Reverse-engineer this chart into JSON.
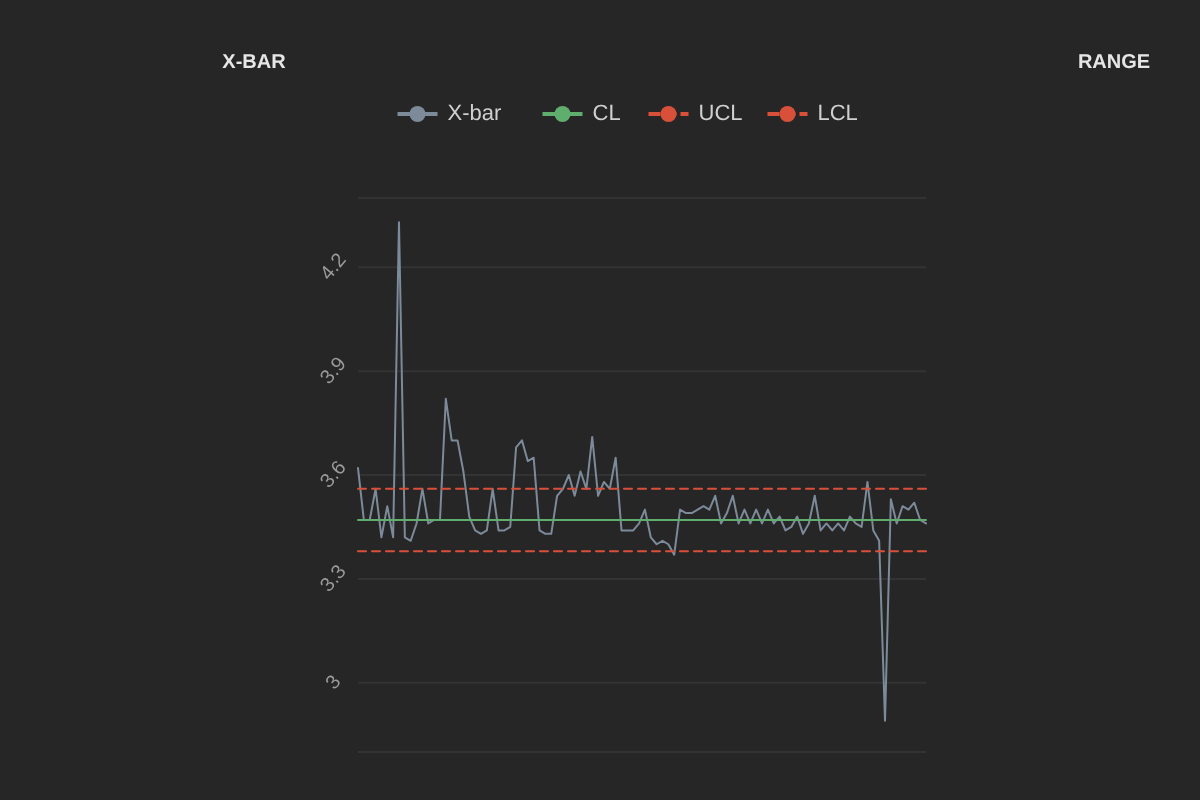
{
  "chart_data": [
    {
      "type": "line",
      "title": "X-BAR",
      "legend": "top",
      "grid": "y",
      "tick_labels": "y",
      "ylim": [
        2.8,
        4.4
      ],
      "yticks": [
        3,
        3.3,
        3.6,
        3.9,
        4.2
      ],
      "categories": [
        null,
        null,
        null,
        null,
        null,
        null,
        null,
        null,
        null,
        null,
        null,
        null,
        null,
        null,
        null,
        null,
        null,
        null,
        null,
        null,
        null,
        null,
        null,
        null,
        null,
        null,
        null,
        null,
        null,
        null,
        null,
        null,
        null,
        null,
        null,
        null,
        null,
        null,
        null,
        null,
        null,
        null,
        null,
        null,
        null,
        null,
        null,
        null,
        null,
        null,
        null,
        null,
        null,
        null,
        null,
        null,
        null,
        null,
        null,
        null,
        null,
        null,
        null,
        null,
        null,
        null,
        null,
        null,
        null,
        null,
        null,
        null,
        null,
        null,
        null,
        null,
        null,
        null,
        null,
        null,
        null,
        null,
        null,
        null,
        null,
        null,
        null,
        null,
        null,
        null,
        null,
        null,
        null,
        null,
        null,
        null,
        null,
        null
      ],
      "series": [
        {
          "name": "X-bar",
          "color": "#7c8a99",
          "line_style": "solid",
          "values": [
            3.62,
            3.47,
            3.47,
            3.56,
            3.42,
            3.51,
            3.42,
            4.33,
            3.42,
            3.41,
            3.46,
            3.56,
            3.46,
            3.47,
            3.47,
            3.82,
            3.7,
            3.7,
            3.61,
            3.48,
            3.44,
            3.43,
            3.44,
            3.56,
            3.44,
            3.44,
            3.45,
            3.68,
            3.7,
            3.64,
            3.65,
            3.44,
            3.43,
            3.43,
            3.54,
            3.56,
            3.6,
            3.54,
            3.61,
            3.56,
            3.71,
            3.54,
            3.58,
            3.56,
            3.65,
            3.44,
            3.44,
            3.44,
            3.46,
            3.5,
            3.42,
            3.4,
            3.41,
            3.4,
            3.37,
            3.5,
            3.49,
            3.49,
            3.5,
            3.51,
            3.5,
            3.54,
            3.46,
            3.49,
            3.54,
            3.46,
            3.5,
            3.46,
            3.5,
            3.46,
            3.5,
            3.46,
            3.48,
            3.44,
            3.45,
            3.48,
            3.43,
            3.46,
            3.54,
            3.44,
            3.46,
            3.44,
            3.46,
            3.44,
            3.48,
            3.46,
            3.45,
            3.58,
            3.44,
            3.41,
            2.89,
            3.53,
            3.46,
            3.51,
            3.5,
            3.52,
            3.47,
            3.46
          ]
        },
        {
          "name": "CL",
          "color": "#5fae6e",
          "line_style": "solid",
          "values": [
            3.47,
            3.47,
            3.47,
            3.47,
            3.47,
            3.47,
            3.47,
            3.47,
            3.47,
            3.47,
            3.47,
            3.47,
            3.47,
            3.47,
            3.47,
            3.47,
            3.47,
            3.47,
            3.47,
            3.47,
            3.47,
            3.47,
            3.47,
            3.47,
            3.47,
            3.47,
            3.47,
            3.47,
            3.47,
            3.47,
            3.47,
            3.47,
            3.47,
            3.47,
            3.47,
            3.47,
            3.47,
            3.47,
            3.47,
            3.47,
            3.47,
            3.47,
            3.47,
            3.47,
            3.47,
            3.47,
            3.47,
            3.47,
            3.47,
            3.47,
            3.47,
            3.47,
            3.47,
            3.47,
            3.47,
            3.47,
            3.47,
            3.47,
            3.47,
            3.47,
            3.47,
            3.47,
            3.47,
            3.47,
            3.47,
            3.47,
            3.47,
            3.47,
            3.47,
            3.47,
            3.47,
            3.47,
            3.47,
            3.47,
            3.47,
            3.47,
            3.47,
            3.47,
            3.47,
            3.47,
            3.47,
            3.47,
            3.47,
            3.47,
            3.47,
            3.47,
            3.47,
            3.47,
            3.47,
            3.47,
            3.47,
            3.47,
            3.47,
            3.47,
            3.47,
            3.47,
            3.47,
            3.47
          ]
        },
        {
          "name": "UCL",
          "color": "#d9503a",
          "line_style": "dashed",
          "values": [
            3.56,
            3.56,
            3.56,
            3.56,
            3.56,
            3.56,
            3.56,
            3.56,
            3.56,
            3.56,
            3.56,
            3.56,
            3.56,
            3.56,
            3.56,
            3.56,
            3.56,
            3.56,
            3.56,
            3.56,
            3.56,
            3.56,
            3.56,
            3.56,
            3.56,
            3.56,
            3.56,
            3.56,
            3.56,
            3.56,
            3.56,
            3.56,
            3.56,
            3.56,
            3.56,
            3.56,
            3.56,
            3.56,
            3.56,
            3.56,
            3.56,
            3.56,
            3.56,
            3.56,
            3.56,
            3.56,
            3.56,
            3.56,
            3.56,
            3.56,
            3.56,
            3.56,
            3.56,
            3.56,
            3.56,
            3.56,
            3.56,
            3.56,
            3.56,
            3.56,
            3.56,
            3.56,
            3.56,
            3.56,
            3.56,
            3.56,
            3.56,
            3.56,
            3.56,
            3.56,
            3.56,
            3.56,
            3.56,
            3.56,
            3.56,
            3.56,
            3.56,
            3.56,
            3.56,
            3.56,
            3.56,
            3.56,
            3.56,
            3.56,
            3.56,
            3.56,
            3.56,
            3.56,
            3.56,
            3.56,
            3.56,
            3.56,
            3.56,
            3.56,
            3.56,
            3.56,
            3.56,
            3.56
          ]
        },
        {
          "name": "LCL",
          "color": "#d9503a",
          "line_style": "dashed",
          "values": [
            3.38,
            3.38,
            3.38,
            3.38,
            3.38,
            3.38,
            3.38,
            3.38,
            3.38,
            3.38,
            3.38,
            3.38,
            3.38,
            3.38,
            3.38,
            3.38,
            3.38,
            3.38,
            3.38,
            3.38,
            3.38,
            3.38,
            3.38,
            3.38,
            3.38,
            3.38,
            3.38,
            3.38,
            3.38,
            3.38,
            3.38,
            3.38,
            3.38,
            3.38,
            3.38,
            3.38,
            3.38,
            3.38,
            3.38,
            3.38,
            3.38,
            3.38,
            3.38,
            3.38,
            3.38,
            3.38,
            3.38,
            3.38,
            3.38,
            3.38,
            3.38,
            3.38,
            3.38,
            3.38,
            3.38,
            3.38,
            3.38,
            3.38,
            3.38,
            3.38,
            3.38,
            3.38,
            3.38,
            3.38,
            3.38,
            3.38,
            3.38,
            3.38,
            3.38,
            3.38,
            3.38,
            3.38,
            3.38,
            3.38,
            3.38,
            3.38,
            3.38,
            3.38,
            3.38,
            3.38,
            3.38,
            3.38,
            3.38,
            3.38,
            3.38,
            3.38,
            3.38,
            3.38,
            3.38,
            3.38,
            3.38,
            3.38,
            3.38,
            3.38,
            3.38,
            3.38,
            3.38,
            3.38
          ]
        }
      ]
    },
    {
      "type": "other",
      "title": "RANGE"
    }
  ]
}
